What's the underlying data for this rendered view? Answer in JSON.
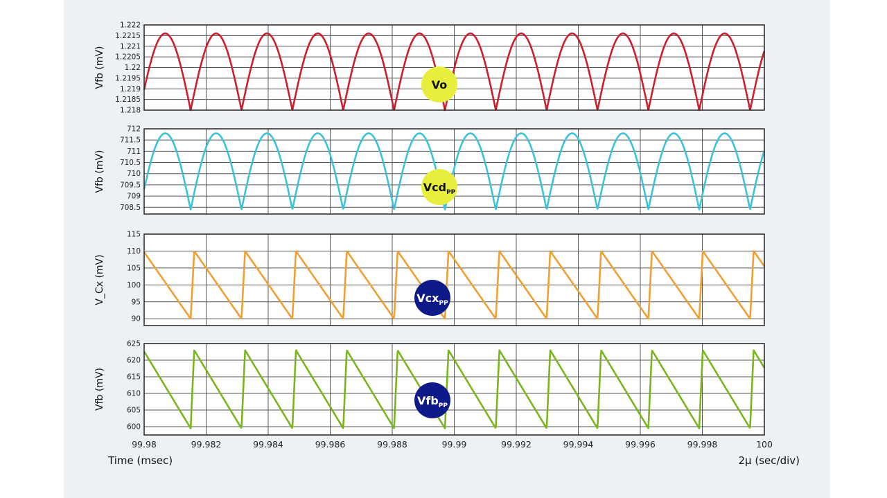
{
  "colors": {
    "background": "#eef1f4",
    "plot_bg": "#ffffff",
    "grid": "#555555",
    "frame": "#222222"
  },
  "footer": {
    "left": "Time (msec)",
    "right": "2µ (sec/div)"
  },
  "chart_data": [
    {
      "type": "line",
      "ylabel": "Vfb (mV)",
      "yticks": [
        "1.222",
        "1.2215",
        "1.221",
        "1.2205",
        "1.22",
        "1.2195",
        "1.219",
        "1.2185",
        "1.218"
      ],
      "ylim": [
        1.218,
        1.222
      ],
      "color": "#cc1f2e",
      "waveform": "rectified-sine",
      "min": 1.218,
      "max": 1.2216,
      "period_ms": 0.00164,
      "phase_ms": 99.9815,
      "badge": {
        "text": "Vo",
        "subscript": "",
        "fill": "#e8ee3c",
        "text_color": "#111111"
      },
      "grid": true
    },
    {
      "type": "line",
      "ylabel": "Vfb (mV)",
      "yticks": [
        "712",
        "711.5",
        "711",
        "710.5",
        "710",
        "709.5",
        "709",
        "708.5"
      ],
      "ylim": [
        708.2,
        712
      ],
      "color": "#3cc3d9",
      "waveform": "rectified-sine",
      "min": 708.4,
      "max": 711.8,
      "period_ms": 0.00164,
      "phase_ms": 99.9815,
      "badge": {
        "text": "Vcd",
        "subscript": "PP",
        "fill": "#e8ee3c",
        "text_color": "#111111"
      },
      "grid": true
    },
    {
      "type": "line",
      "ylabel": "V_Cx (mV)",
      "yticks": [
        "115",
        "110",
        "105",
        "100",
        "95",
        "90"
      ],
      "ylim": [
        88,
        115
      ],
      "color": "#f0a030",
      "waveform": "sawtooth",
      "min": 90,
      "max": 110,
      "period_ms": 0.00164,
      "phase_ms": 99.9815,
      "badge": {
        "text": "Vcx",
        "subscript": "PP",
        "fill": "#0f1a8a",
        "text_color": "#ffffff"
      },
      "grid": true
    },
    {
      "type": "line",
      "ylabel": "Vfb (mV)",
      "yticks": [
        "625",
        "620",
        "615",
        "610",
        "605",
        "600"
      ],
      "ylim": [
        597.5,
        625
      ],
      "color": "#7ab51d",
      "waveform": "sawtooth",
      "min": 599.5,
      "max": 623,
      "period_ms": 0.00164,
      "phase_ms": 99.9815,
      "badge": {
        "text": "Vfb",
        "subscript": "PP",
        "fill": "#0f1a8a",
        "text_color": "#ffffff"
      },
      "grid": true
    }
  ],
  "x_axis": {
    "xlim": [
      99.98,
      100
    ],
    "ticks": [
      {
        "value": 99.98,
        "label": "99.98"
      },
      {
        "value": 99.982,
        "label": "99.982"
      },
      {
        "value": 99.984,
        "label": "99.984"
      },
      {
        "value": 99.986,
        "label": "99.986"
      },
      {
        "value": 99.988,
        "label": "99.988"
      },
      {
        "value": 99.99,
        "label": "99.99"
      },
      {
        "value": 99.992,
        "label": "99.992"
      },
      {
        "value": 99.994,
        "label": "99.994"
      },
      {
        "value": 99.996,
        "label": "99.996"
      },
      {
        "value": 99.998,
        "label": "99.998"
      },
      {
        "value": 100,
        "label": "100"
      }
    ]
  }
}
